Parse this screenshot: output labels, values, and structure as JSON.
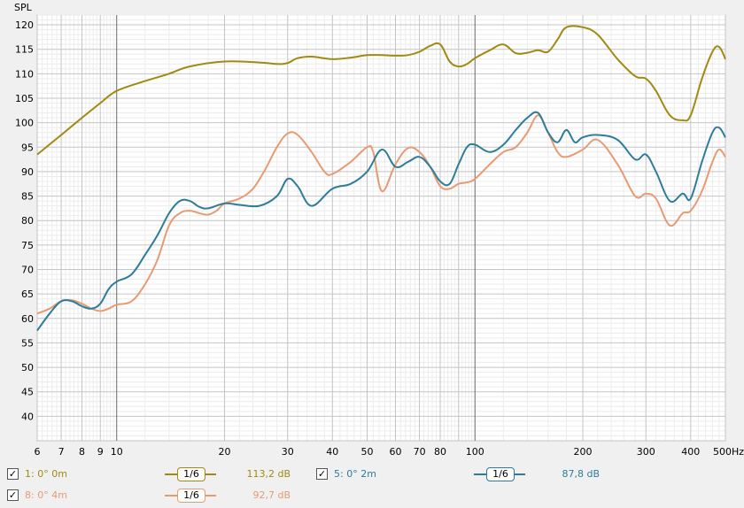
{
  "chart_data": {
    "type": "line",
    "ylabel": "SPL",
    "xunit": "Hz",
    "xscale": "log",
    "xlim": [
      6,
      500
    ],
    "ylim": [
      35,
      122
    ],
    "x_ticks": [
      6,
      7,
      8,
      9,
      10,
      20,
      30,
      40,
      50,
      60,
      70,
      80,
      100,
      200,
      300,
      400,
      500
    ],
    "x_tick_labels": [
      "6",
      "7",
      "8",
      "9",
      "10",
      "20",
      "30",
      "40",
      "50",
      "60",
      "70",
      "80",
      "100",
      "200",
      "300",
      "400",
      "500Hz"
    ],
    "y_ticks": [
      40,
      45,
      50,
      55,
      60,
      65,
      70,
      75,
      80,
      85,
      90,
      95,
      100,
      105,
      110,
      115,
      120
    ],
    "grid": true,
    "series": [
      {
        "name": "1: 0° 0m",
        "color": "#a08a10",
        "x": [
          6,
          7,
          8,
          9,
          10,
          12,
          14,
          16,
          20,
          25,
          28,
          30,
          32,
          35,
          40,
          45,
          50,
          55,
          60,
          65,
          70,
          75,
          80,
          85,
          90,
          95,
          100,
          110,
          120,
          130,
          140,
          150,
          160,
          170,
          180,
          200,
          220,
          250,
          280,
          300,
          320,
          350,
          380,
          400,
          430,
          460,
          480,
          500
        ],
        "values": [
          93.5,
          97.5,
          101,
          104,
          106.5,
          108.5,
          110,
          111.5,
          112.5,
          112.3,
          112,
          112.2,
          113.2,
          113.5,
          113,
          113.3,
          113.8,
          113.8,
          113.7,
          113.8,
          114.5,
          115.7,
          116,
          112.5,
          111.5,
          112,
          113.2,
          114.8,
          116,
          114.2,
          114.3,
          114.8,
          114.5,
          117,
          119.5,
          119.5,
          118,
          113,
          109.5,
          109,
          106.5,
          101.5,
          100.5,
          101.5,
          109,
          114.5,
          115.5,
          113
        ]
      },
      {
        "name": "5: 0° 2m",
        "color": "#2d7d9a",
        "x": [
          6,
          6.5,
          7,
          7.5,
          8,
          8.5,
          9,
          9.5,
          10,
          11,
          12,
          13,
          14,
          15,
          16,
          17,
          18,
          20,
          22,
          25,
          28,
          30,
          32,
          35,
          40,
          45,
          50,
          55,
          60,
          65,
          70,
          75,
          80,
          85,
          90,
          95,
          100,
          110,
          120,
          130,
          140,
          150,
          160,
          170,
          180,
          190,
          200,
          220,
          250,
          280,
          300,
          320,
          350,
          380,
          400,
          430,
          460,
          480,
          500
        ],
        "values": [
          57.5,
          61,
          63.5,
          63.5,
          62.5,
          62,
          63,
          66,
          67.5,
          69,
          73,
          77,
          81.5,
          84,
          84,
          82.8,
          82.5,
          83.5,
          83.2,
          83,
          85,
          88.5,
          87,
          83,
          86.5,
          87.5,
          90,
          94.5,
          91,
          92,
          93,
          91,
          88,
          87.5,
          91.5,
          95,
          95.5,
          94,
          95.5,
          98.5,
          101,
          102,
          98,
          96,
          98.5,
          96,
          97,
          97.5,
          96.5,
          92.5,
          93.5,
          90,
          84,
          85.5,
          84.5,
          92,
          98,
          99,
          97
        ]
      },
      {
        "name": "8: 0° 4m",
        "color": "#e89a72",
        "x": [
          6,
          6.5,
          7,
          7.5,
          8,
          8.5,
          9,
          9.5,
          10,
          11,
          12,
          13,
          14,
          15,
          16,
          17,
          18,
          19,
          20,
          22,
          24,
          26,
          28,
          30,
          32,
          35,
          38,
          40,
          45,
          50,
          52,
          55,
          60,
          65,
          70,
          75,
          80,
          85,
          90,
          95,
          100,
          110,
          120,
          130,
          140,
          150,
          160,
          170,
          180,
          200,
          220,
          250,
          280,
          300,
          320,
          350,
          380,
          400,
          430,
          460,
          480,
          500
        ],
        "values": [
          61,
          62,
          63.5,
          63.7,
          63,
          62,
          61.5,
          62,
          62.8,
          63.5,
          67,
          72,
          79,
          81.5,
          82,
          81.5,
          81.2,
          82,
          83.5,
          84.5,
          86.5,
          90.5,
          95,
          97.8,
          97.5,
          94,
          90,
          89.5,
          92,
          95,
          94,
          86,
          91.5,
          94.8,
          94,
          91,
          87,
          86.5,
          87.5,
          87.8,
          88.5,
          91.5,
          94,
          95,
          98,
          101.5,
          98,
          94,
          93,
          94.5,
          96.5,
          91.5,
          85,
          85.5,
          84.5,
          79,
          81.5,
          82,
          86,
          92,
          94.5,
          93
        ]
      }
    ],
    "legend": [
      {
        "label": "1: 0° 0m",
        "smoothing": "1/6",
        "value": "113,2 dB",
        "color": "#a08a10",
        "checked": true
      },
      {
        "label": "5: 0° 2m",
        "smoothing": "1/6",
        "value": "87,8 dB",
        "color": "#2d7d9a",
        "checked": true
      },
      {
        "label": "8: 0° 4m",
        "smoothing": "1/6",
        "value": "92,7 dB",
        "color": "#e89a72",
        "checked": true
      }
    ]
  }
}
